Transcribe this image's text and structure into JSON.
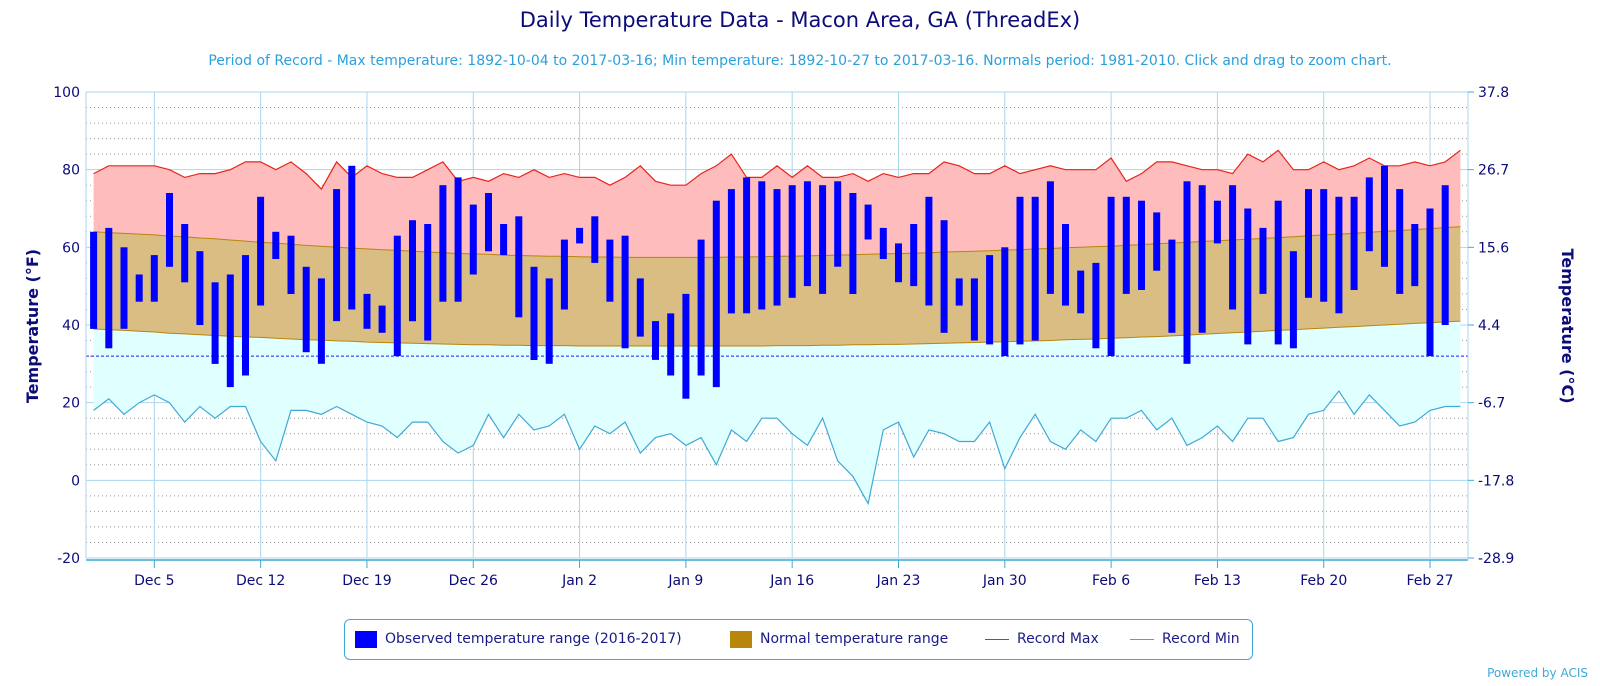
{
  "title": "Daily Temperature Data - Macon Area, GA (ThreadEx)",
  "subtitle": "Period of Record - Max temperature: 1892-10-04 to 2017-03-16; Min temperature: 1892-10-27 to 2017-03-16. Normals period: 1981-2010. Click and drag to zoom chart.",
  "powered_by": "Powered by ACIS",
  "legend": {
    "observed": "Observed temperature range (2016-2017)",
    "normal": "Normal temperature range",
    "record_max": "Record Max",
    "record_min": "Record Min"
  },
  "colors": {
    "observed": "#0000ff",
    "normal_fill": "#d9bd82",
    "normal_line": "#b8860b",
    "record_max_line": "#e8241c",
    "record_max_fill": "#ffbcbc",
    "record_min_line": "#3fa9d6",
    "record_min_fill": "#e0ffff",
    "freeze_line": "#1a1aff",
    "axis_text": "#0b0b7a"
  },
  "chart_data": {
    "type": "bar",
    "start_date": "2016-12-01",
    "x_tick_labels": [
      "Dec 5",
      "Dec 12",
      "Dec 19",
      "Dec 26",
      "Jan 2",
      "Jan 9",
      "Jan 16",
      "Jan 23",
      "Jan 30",
      "Feb 6",
      "Feb 13",
      "Feb 20",
      "Feb 27"
    ],
    "ylabel": "Temperature (°F)",
    "ylabel_right": "Temperature (°C)",
    "ylim": [
      -20,
      100
    ],
    "y_ticks": [
      -20,
      0,
      20,
      40,
      60,
      80,
      100
    ],
    "y_ticks_right": [
      "-28.9",
      "-17.8",
      "-6.7",
      "4.4",
      "15.6",
      "26.7",
      "37.8"
    ],
    "freeze_line": 32,
    "observed": {
      "lows": [
        39,
        34,
        39,
        46,
        46,
        55,
        51,
        40,
        30,
        24,
        27,
        45,
        57,
        48,
        33,
        30,
        41,
        44,
        39,
        38,
        32,
        41,
        36,
        46,
        46,
        53,
        59,
        58,
        42,
        31,
        30,
        44,
        61,
        56,
        46,
        34,
        37,
        31,
        27,
        21,
        27,
        24,
        43,
        43,
        44,
        45,
        47,
        50,
        48,
        55,
        48,
        62,
        57,
        51,
        50,
        45,
        38,
        45,
        36,
        35,
        32,
        35,
        36,
        48,
        45,
        43,
        34,
        32,
        48,
        49,
        54,
        38,
        30,
        38,
        61,
        44,
        35,
        48,
        35,
        34,
        47,
        46,
        43,
        49,
        59,
        55,
        48,
        50,
        32,
        40,
        49
      ],
      "highs": [
        64,
        65,
        60,
        53,
        58,
        74,
        66,
        59,
        51,
        53,
        58,
        73,
        64,
        63,
        55,
        52,
        75,
        81,
        48,
        45,
        63,
        67,
        66,
        76,
        78,
        71,
        74,
        66,
        68,
        55,
        52,
        62,
        65,
        68,
        62,
        63,
        52,
        41,
        43,
        48,
        62,
        72,
        75,
        78,
        77,
        75,
        76,
        77,
        76,
        77,
        74,
        71,
        65,
        61,
        66,
        73,
        67,
        52,
        52,
        58,
        60,
        73,
        73,
        77,
        66,
        54,
        56,
        73,
        73,
        72,
        69,
        62,
        77,
        76,
        72,
        76,
        70,
        65,
        72,
        59,
        75,
        75,
        73,
        73,
        78,
        81,
        75,
        66,
        70,
        76,
        49
      ]
    },
    "normal_high": [
      64,
      63.8,
      63.6,
      63.4,
      63.2,
      62.9,
      62.7,
      62.4,
      62.2,
      61.9,
      61.6,
      61.3,
      61.1,
      60.8,
      60.5,
      60.3,
      60,
      59.8,
      59.6,
      59.4,
      59.2,
      59,
      58.8,
      58.6,
      58.4,
      58.3,
      58.2,
      58,
      57.9,
      57.8,
      57.7,
      57.7,
      57.6,
      57.5,
      57.5,
      57.4,
      57.4,
      57.4,
      57.4,
      57.4,
      57.4,
      57.4,
      57.5,
      57.5,
      57.6,
      57.7,
      57.7,
      57.8,
      57.9,
      58,
      58.1,
      58.2,
      58.3,
      58.4,
      58.5,
      58.6,
      58.8,
      58.9,
      59,
      59.1,
      59.3,
      59.4,
      59.6,
      59.7,
      59.9,
      60,
      60.2,
      60.3,
      60.5,
      60.7,
      60.9,
      61.1,
      61.3,
      61.5,
      61.7,
      61.9,
      62.1,
      62.3,
      62.5,
      62.7,
      63,
      63.2,
      63.4,
      63.6,
      63.9,
      64.1,
      64.3,
      64.6,
      64.8,
      65.1,
      65.3
    ],
    "normal_low": [
      39,
      38.8,
      38.6,
      38.4,
      38.2,
      37.9,
      37.7,
      37.5,
      37.3,
      37.1,
      36.9,
      36.8,
      36.6,
      36.4,
      36.2,
      36.1,
      35.9,
      35.8,
      35.6,
      35.5,
      35.4,
      35.3,
      35.2,
      35.1,
      35,
      34.9,
      34.9,
      34.8,
      34.8,
      34.7,
      34.7,
      34.7,
      34.6,
      34.6,
      34.6,
      34.6,
      34.6,
      34.6,
      34.6,
      34.6,
      34.6,
      34.6,
      34.6,
      34.6,
      34.6,
      34.7,
      34.7,
      34.7,
      34.8,
      34.8,
      34.9,
      34.9,
      35,
      35,
      35.1,
      35.2,
      35.3,
      35.4,
      35.5,
      35.6,
      35.7,
      35.8,
      35.9,
      36,
      36.2,
      36.3,
      36.4,
      36.6,
      36.7,
      36.9,
      37,
      37.2,
      37.4,
      37.6,
      37.8,
      38,
      38.2,
      38.4,
      38.6,
      38.8,
      39,
      39.2,
      39.4,
      39.6,
      39.8,
      40,
      40.2,
      40.4,
      40.6,
      40.8,
      41
    ],
    "record_max": [
      79,
      81,
      81,
      81,
      81,
      80,
      78,
      79,
      79,
      80,
      82,
      82,
      80,
      82,
      79,
      75,
      82,
      78,
      81,
      79,
      78,
      78,
      80,
      82,
      77,
      78,
      77,
      79,
      78,
      80,
      78,
      79,
      78,
      78,
      76,
      78,
      81,
      77,
      76,
      76,
      79,
      81,
      84,
      78,
      78,
      81,
      78,
      81,
      78,
      78,
      79,
      77,
      79,
      78,
      79,
      79,
      82,
      81,
      79,
      79,
      81,
      79,
      80,
      81,
      80,
      80,
      80,
      83,
      77,
      79,
      82,
      82,
      81,
      80,
      80,
      79,
      84,
      82,
      85,
      80,
      80,
      82,
      80,
      81,
      83,
      81,
      81,
      82,
      81,
      82,
      85
    ],
    "record_min": [
      18,
      21,
      17,
      20,
      22,
      20,
      15,
      19,
      16,
      19,
      19,
      10,
      5,
      18,
      18,
      17,
      19,
      17,
      15,
      14,
      11,
      15,
      15,
      10,
      7,
      9,
      17,
      11,
      17,
      13,
      14,
      17,
      8,
      14,
      12,
      15,
      7,
      11,
      12,
      9,
      11,
      4,
      13,
      10,
      16,
      16,
      12,
      9,
      16,
      5,
      1,
      -6,
      13,
      15,
      6,
      13,
      12,
      10,
      10,
      15,
      3,
      11,
      17,
      10,
      8,
      13,
      10,
      16,
      16,
      18,
      13,
      16,
      9,
      11,
      14,
      10,
      16,
      16,
      10,
      11,
      17,
      18,
      23,
      17,
      22,
      18,
      14,
      15,
      18,
      19,
      19
    ]
  }
}
